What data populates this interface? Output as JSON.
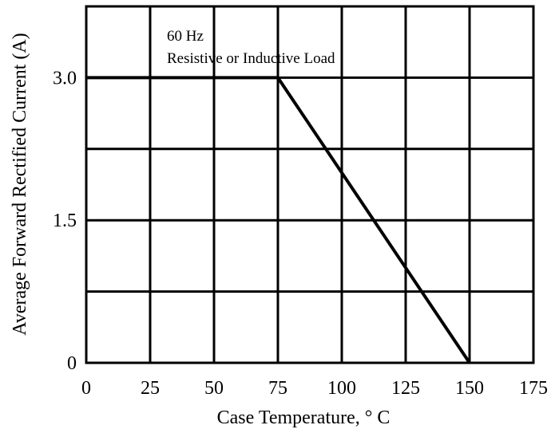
{
  "chart_data": {
    "type": "line",
    "title": "",
    "xlabel": "Case  Temperature, °  C",
    "ylabel": "Average Forward Rectified Current (A)",
    "xlim": [
      0,
      175
    ],
    "ylim": [
      0,
      3.75
    ],
    "x_ticks": [
      0,
      25,
      50,
      75,
      100,
      125,
      150,
      175
    ],
    "x_tick_labels": [
      "0",
      "25",
      "50",
      "75",
      "100",
      "125",
      "150",
      "175"
    ],
    "y_ticks": [
      0,
      1.5,
      3.0
    ],
    "y_tick_labels": [
      "0",
      "1.5",
      "3.0"
    ],
    "grid": true,
    "annotations": [
      "60 Hz",
      "Resistive or Inductive Load"
    ],
    "series": [
      {
        "x": [
          0,
          75,
          150
        ],
        "y": [
          3.0,
          3.0,
          0
        ]
      }
    ]
  }
}
